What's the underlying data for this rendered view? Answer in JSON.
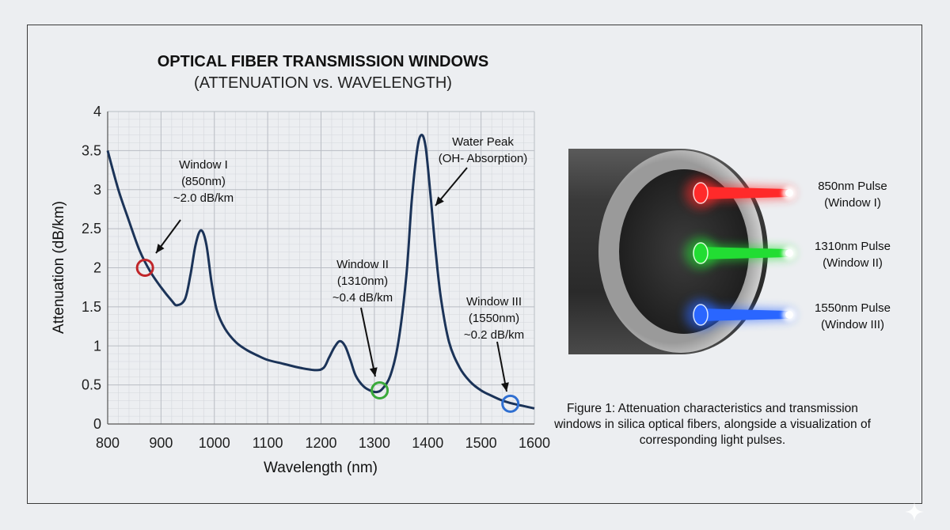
{
  "chart_data": {
    "type": "line",
    "title": "OPTICAL FIBER TRANSMISSION WINDOWS",
    "subtitle": "(ATTENUATION vs. WAVELENGTH)",
    "xlabel": "Wavelength (nm)",
    "ylabel": "Attenuation (dB/km)",
    "xlim": [
      800,
      1600
    ],
    "ylim": [
      0,
      4
    ],
    "xticks": [
      "800",
      "900",
      "1000",
      "1100",
      "1200",
      "1300",
      "1400",
      "1500",
      "1600"
    ],
    "yticks": [
      "0",
      "0.5",
      "1",
      "1.5",
      "2",
      "2.5",
      "3",
      "3.5",
      "4"
    ],
    "grid": true,
    "series": [
      {
        "color": "#1b3358",
        "x": [
          800,
          820,
          840,
          860,
          880,
          900,
          920,
          930,
          945,
          955,
          965,
          975,
          985,
          995,
          1005,
          1020,
          1040,
          1060,
          1080,
          1100,
          1130,
          1160,
          1190,
          1205,
          1215,
          1225,
          1235,
          1245,
          1255,
          1265,
          1280,
          1295,
          1305,
          1315,
          1330,
          1345,
          1360,
          1370,
          1380,
          1388,
          1396,
          1405,
          1415,
          1425,
          1440,
          1460,
          1480,
          1500,
          1520,
          1540,
          1560,
          1580,
          1600
        ],
        "y": [
          3.5,
          3.0,
          2.6,
          2.22,
          1.95,
          1.75,
          1.58,
          1.52,
          1.6,
          1.9,
          2.3,
          2.48,
          2.3,
          1.8,
          1.45,
          1.22,
          1.05,
          0.95,
          0.88,
          0.82,
          0.77,
          0.72,
          0.69,
          0.72,
          0.85,
          0.98,
          1.06,
          1.0,
          0.82,
          0.62,
          0.48,
          0.42,
          0.41,
          0.45,
          0.62,
          1.05,
          1.9,
          2.85,
          3.5,
          3.7,
          3.55,
          2.95,
          2.2,
          1.6,
          1.05,
          0.72,
          0.54,
          0.43,
          0.36,
          0.3,
          0.26,
          0.23,
          0.2
        ]
      }
    ],
    "markers": [
      {
        "x": 870,
        "y": 2.0,
        "color": "#c0262a"
      },
      {
        "x": 1310,
        "y": 0.43,
        "color": "#3aaa3a"
      },
      {
        "x": 1555,
        "y": 0.26,
        "color": "#2f6fd1"
      }
    ],
    "annotations": [
      {
        "lines": [
          "Window I",
          "(850nm)",
          "~2.0 dB/km"
        ]
      },
      {
        "lines": [
          "Window II",
          "(1310nm)",
          "~0.4 dB/km"
        ]
      },
      {
        "lines": [
          "Window III",
          "(1550nm)",
          "~0.2 dB/km"
        ]
      },
      {
        "lines": [
          "Water Peak",
          "(OH- Absorption)"
        ]
      }
    ]
  },
  "fiber": {
    "pulses": [
      {
        "label": [
          "850nm Pulse",
          "(Window I)"
        ],
        "color": "#ff2a2a",
        "core": "#ffd0d0"
      },
      {
        "label": [
          "1310nm Pulse",
          "(Window II)"
        ],
        "color": "#22dd33",
        "core": "#d6ffd6"
      },
      {
        "label": [
          "1550nm Pulse",
          "(Window III)"
        ],
        "color": "#2a66ff",
        "core": "#d6e4ff"
      }
    ]
  },
  "caption": "Figure 1: Attenuation characteristics and transmission windows in silica optical fibers, alongside a visualization of corresponding light pulses."
}
